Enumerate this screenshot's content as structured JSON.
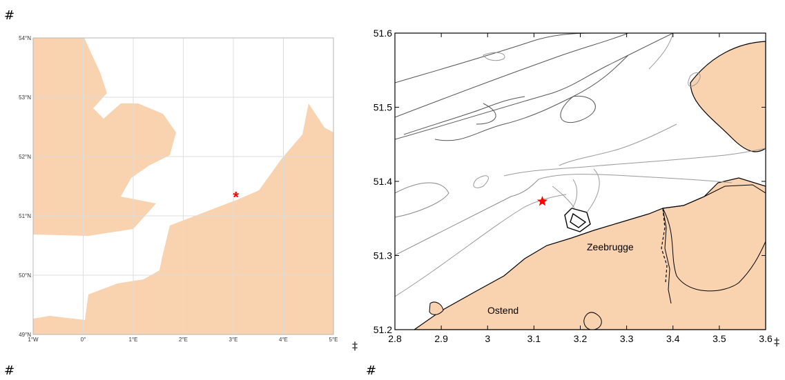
{
  "markers": {
    "hash_top_left": "#",
    "hash_bottom_left": "#",
    "hash_bottom_center": "#",
    "dagger_center": "‡",
    "dagger_right": "‡"
  },
  "overview_map": {
    "lon_ticks": [
      "1°W",
      "0°",
      "1°E",
      "2°E",
      "3°E",
      "4°E",
      "5°E"
    ],
    "lat_ticks": [
      "54°N",
      "53°N",
      "52°N",
      "51°N",
      "50°N",
      "49°N"
    ],
    "lon_range": [
      -1,
      5
    ],
    "lat_range": [
      49,
      54
    ],
    "land_color": "#f9d2b0",
    "grid": true,
    "site": {
      "lon": 3.05,
      "lat": 51.33,
      "symbol": "*",
      "color": "#ff0000"
    }
  },
  "detail_map": {
    "x_ticks": [
      "2.8",
      "2.9",
      "3",
      "3.1",
      "3.2",
      "3.3",
      "3.4",
      "3.5",
      "3.6"
    ],
    "y_ticks": [
      "51.6",
      "51.5",
      "51.4",
      "51.3",
      "51.2"
    ],
    "xlim": [
      2.8,
      3.6
    ],
    "ylim": [
      51.2,
      51.6
    ],
    "land_color": "#f9d2b0",
    "labels": {
      "zeebrugge": "Zeebrugge",
      "ostend": "Ostend"
    },
    "site": {
      "lon": 3.118,
      "lat": 51.373,
      "symbol": "star",
      "color": "#ff0000"
    }
  }
}
